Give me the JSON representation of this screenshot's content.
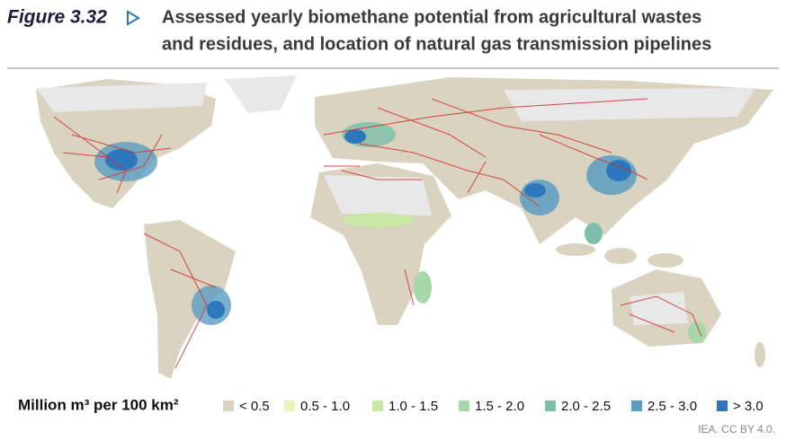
{
  "header": {
    "figure_label": "Figure 3.32",
    "title_lines": [
      "Assessed yearly biomethane potential from agricultural wastes",
      "and residues, and location of natural gas transmission pipelines"
    ]
  },
  "legend": {
    "title": "Million m³ per 100 km²",
    "items": [
      {
        "label": "< 0.5",
        "color": "#d9d3bf"
      },
      {
        "label": "0.5 - 1.0",
        "color": "#eaf4bc"
      },
      {
        "label": "1.0 - 1.5",
        "color": "#c9e8a3"
      },
      {
        "label": "1.5 - 2.0",
        "color": "#a6d8a9"
      },
      {
        "label": "2.0 - 2.5",
        "color": "#7dbfa9"
      },
      {
        "label": "2.5 - 3.0",
        "color": "#5a9dc2"
      },
      {
        "label": "> 3.0",
        "color": "#2d78bd"
      }
    ]
  },
  "credit": "IEA. CC BY 4.0."
}
